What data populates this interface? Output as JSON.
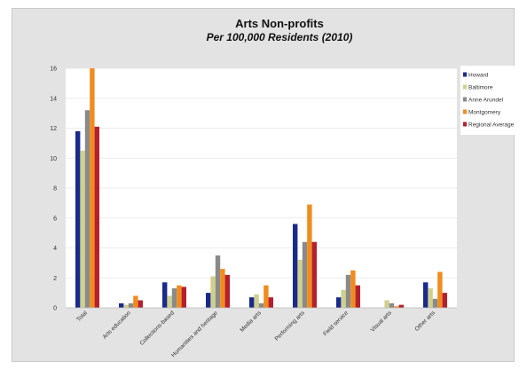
{
  "chart_data": {
    "type": "bar",
    "title": "Arts Non-profits",
    "subtitle": "Per 100,000 Residents (2010)",
    "categories": [
      "Total",
      "Arts education",
      "Collections-based",
      "Humanities and heritage",
      "Media arts",
      "Performing arts",
      "Field service",
      "Visual arts",
      "Other arts"
    ],
    "series": [
      {
        "name": "Howard",
        "color": "#1a2a8c",
        "values": [
          11.8,
          0.3,
          1.7,
          1.0,
          0.7,
          5.6,
          0.7,
          0.0,
          1.7
        ]
      },
      {
        "name": "Baltimore",
        "color": "#cfd08c",
        "values": [
          10.5,
          0.2,
          0.8,
          2.1,
          0.9,
          3.2,
          1.2,
          0.5,
          1.3
        ]
      },
      {
        "name": "Anne Arundel",
        "color": "#8a8a8a",
        "values": [
          13.2,
          0.3,
          1.3,
          3.5,
          0.3,
          4.4,
          2.2,
          0.3,
          0.6
        ]
      },
      {
        "name": "Montgomery",
        "color": "#f08c1e",
        "values": [
          16.0,
          0.8,
          1.5,
          2.6,
          1.5,
          6.9,
          2.5,
          0.1,
          2.4
        ]
      },
      {
        "name": "Regional Average",
        "color": "#b5202e",
        "values": [
          12.1,
          0.5,
          1.4,
          2.2,
          0.7,
          4.4,
          1.5,
          0.2,
          1.0
        ]
      }
    ],
    "ylim": [
      0,
      16
    ],
    "yticks": [
      0,
      2,
      4,
      6,
      8,
      10,
      12,
      14,
      16
    ],
    "grid": true,
    "legend_position": "right"
  }
}
